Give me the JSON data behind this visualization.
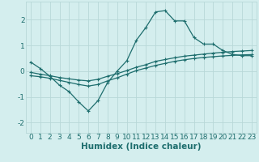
{
  "xlabel": "Humidex (Indice chaleur)",
  "ylabel": "",
  "xlim": [
    -0.5,
    23.5
  ],
  "ylim": [
    -2.4,
    2.7
  ],
  "bg_color": "#d4eeee",
  "grid_color": "#b8d8d8",
  "line_color": "#1e6e6e",
  "line1_x": [
    0,
    1,
    2,
    3,
    4,
    5,
    6,
    7,
    8,
    9,
    10,
    11,
    12,
    13,
    14,
    15,
    16,
    17,
    18,
    19,
    20,
    21,
    22,
    23
  ],
  "line1_y": [
    0.35,
    0.1,
    -0.2,
    -0.55,
    -0.8,
    -1.2,
    -1.55,
    -1.15,
    -0.45,
    0.0,
    0.4,
    1.2,
    1.7,
    2.3,
    2.35,
    1.95,
    1.95,
    1.3,
    1.05,
    1.05,
    0.8,
    0.65,
    0.6,
    0.6
  ],
  "line2_x": [
    0,
    1,
    2,
    3,
    4,
    5,
    6,
    7,
    8,
    9,
    10,
    11,
    12,
    13,
    14,
    15,
    16,
    17,
    18,
    19,
    20,
    21,
    22,
    23
  ],
  "line2_y": [
    -0.05,
    -0.12,
    -0.18,
    -0.25,
    -0.3,
    -0.35,
    -0.38,
    -0.32,
    -0.2,
    -0.1,
    0.02,
    0.15,
    0.25,
    0.38,
    0.45,
    0.52,
    0.58,
    0.62,
    0.66,
    0.7,
    0.73,
    0.76,
    0.78,
    0.8
  ],
  "line3_x": [
    0,
    1,
    2,
    3,
    4,
    5,
    6,
    7,
    8,
    9,
    10,
    11,
    12,
    13,
    14,
    15,
    16,
    17,
    18,
    19,
    20,
    21,
    22,
    23
  ],
  "line3_y": [
    -0.18,
    -0.22,
    -0.28,
    -0.36,
    -0.44,
    -0.52,
    -0.58,
    -0.52,
    -0.38,
    -0.26,
    -0.12,
    0.02,
    0.12,
    0.22,
    0.3,
    0.38,
    0.44,
    0.49,
    0.53,
    0.56,
    0.59,
    0.61,
    0.63,
    0.64
  ],
  "xticks": [
    0,
    1,
    2,
    3,
    4,
    5,
    6,
    7,
    8,
    9,
    10,
    11,
    12,
    13,
    14,
    15,
    16,
    17,
    18,
    19,
    20,
    21,
    22,
    23
  ],
  "yticks": [
    -2,
    -1,
    0,
    1,
    2
  ],
  "tick_fontsize": 6.5,
  "label_fontsize": 7.5
}
